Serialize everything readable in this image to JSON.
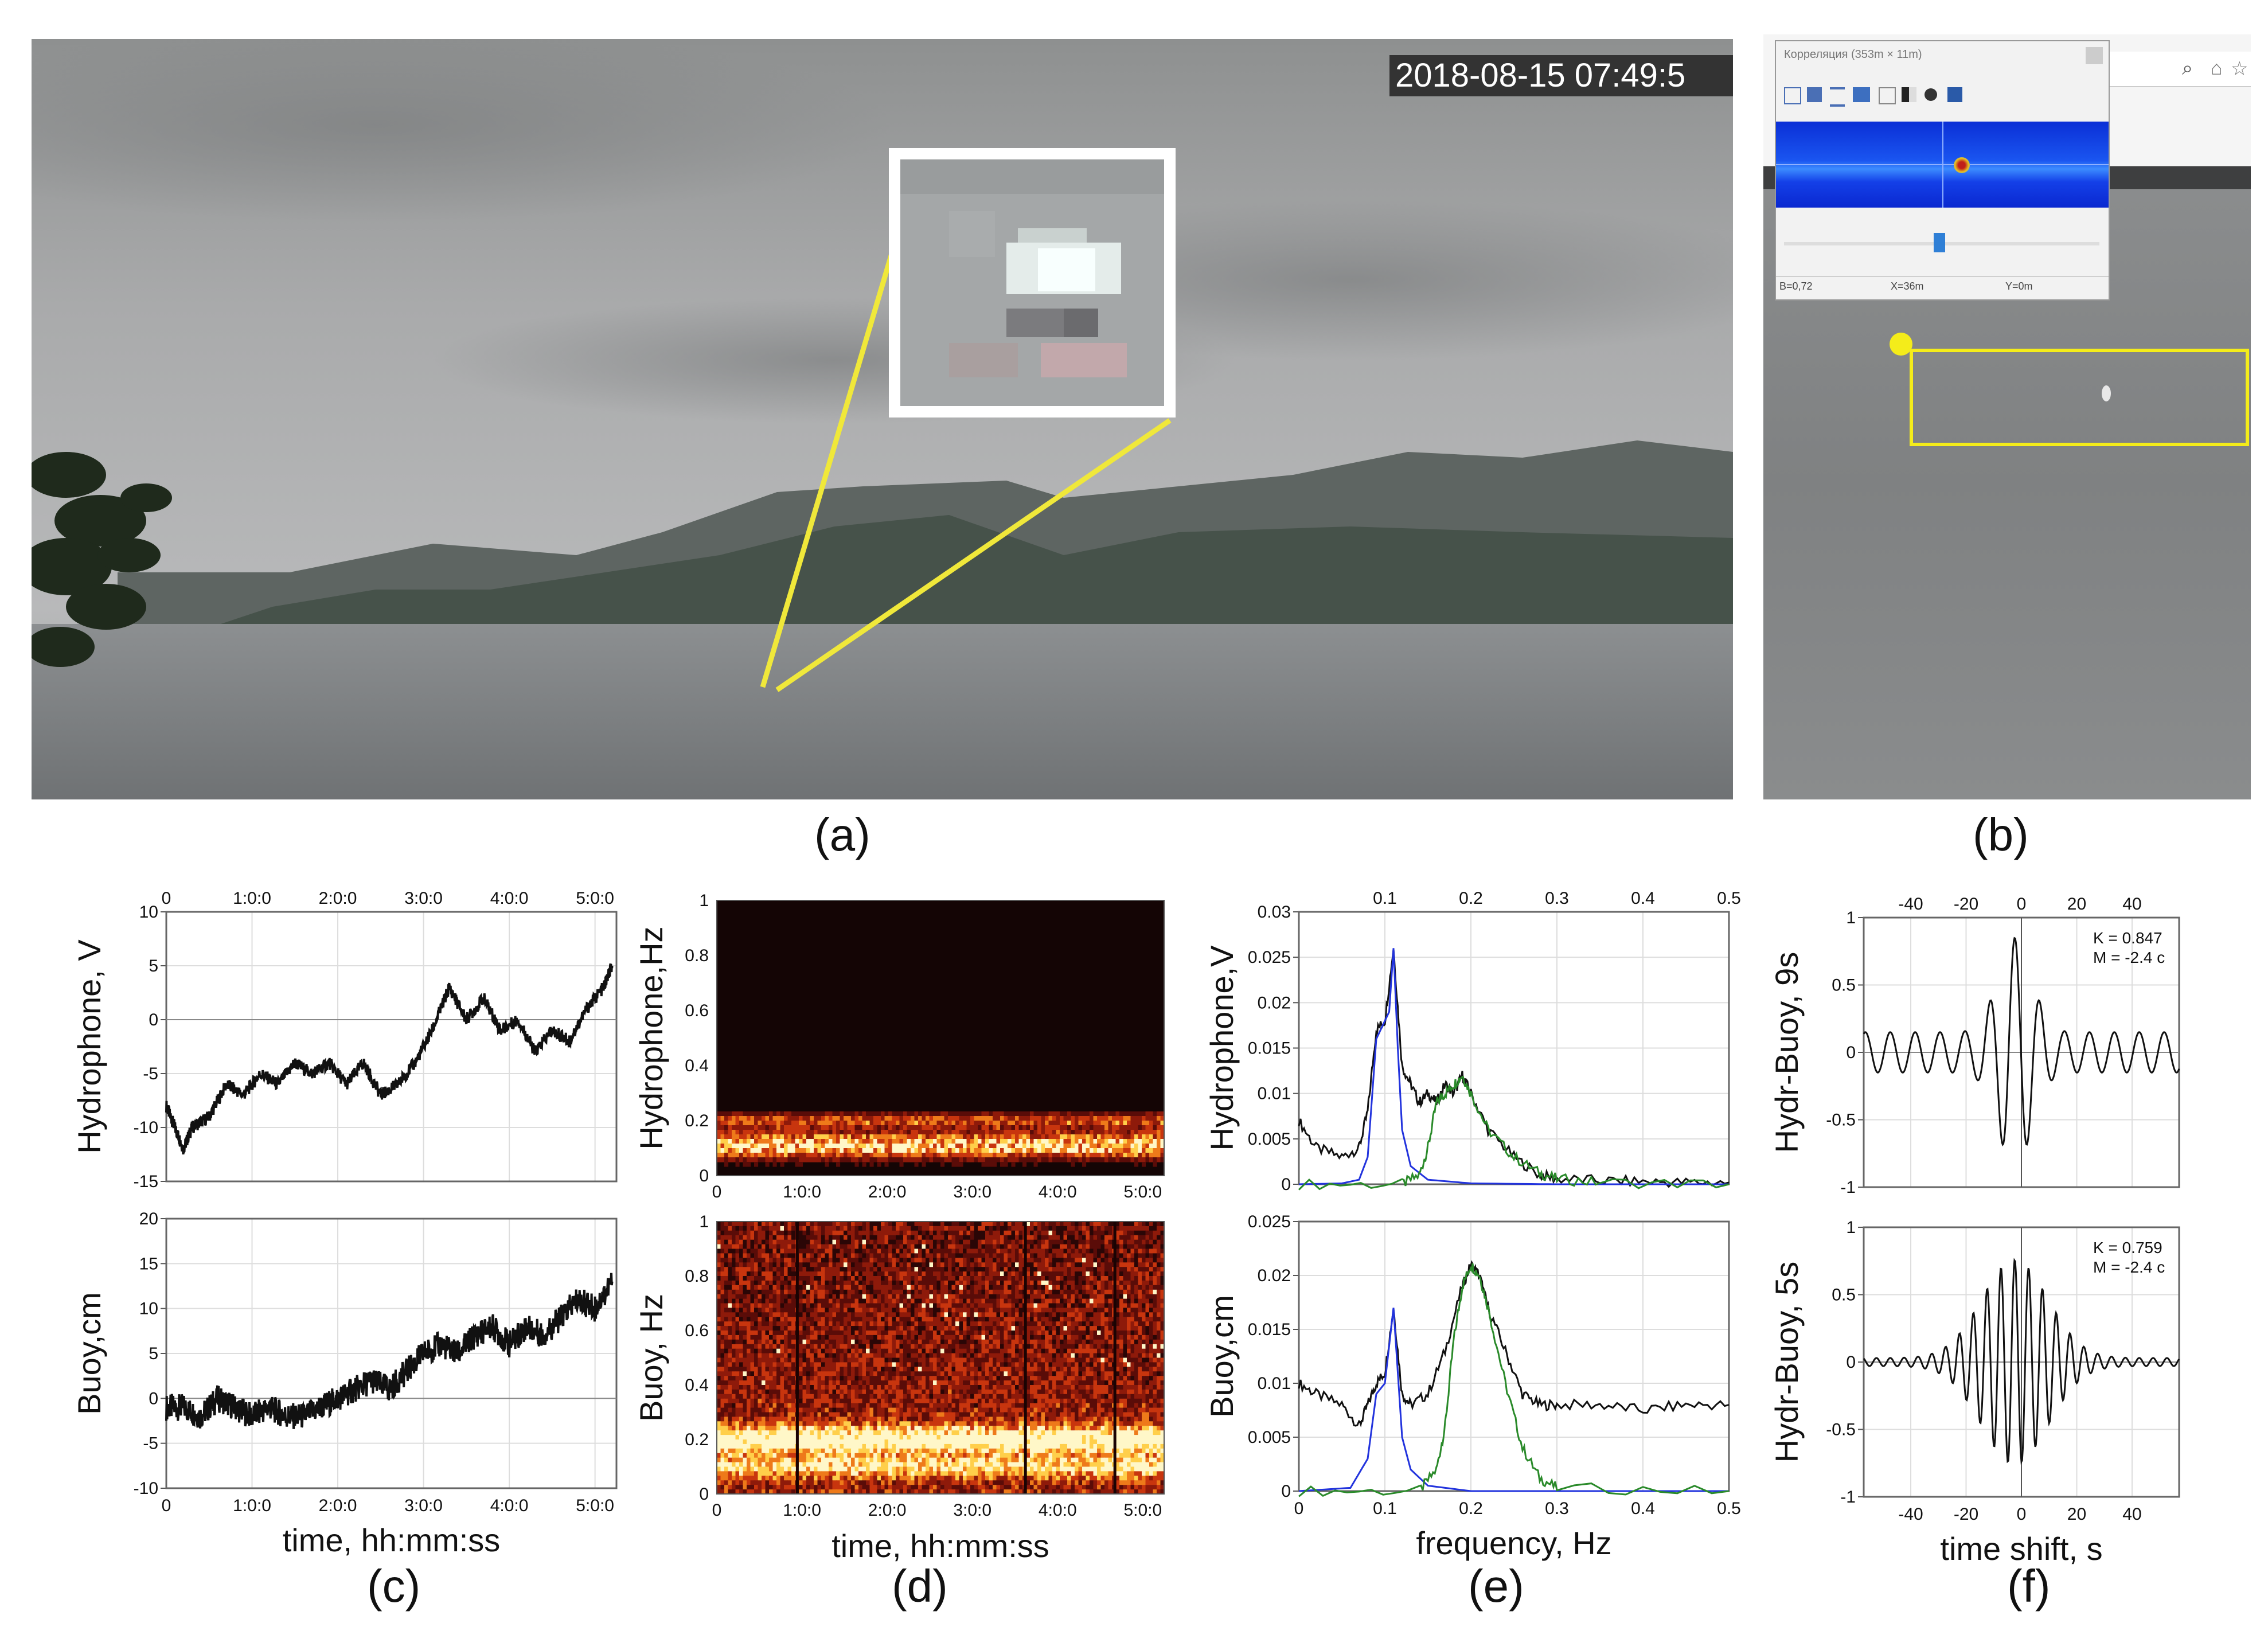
{
  "panel_a": {
    "label": "(a)",
    "timestamp": "2018-08-15 07:49:5"
  },
  "panel_b": {
    "label": "(b)",
    "window_title": "Корреляция (353m × 11m)",
    "status": [
      "B=0,72",
      "X=36m",
      "Y=0m"
    ]
  },
  "panel_c": {
    "label": "(c)"
  },
  "panel_d": {
    "label": "(d)"
  },
  "panel_e": {
    "label": "(e)"
  },
  "panel_f": {
    "label": "(f)"
  },
  "chart_data": [
    {
      "id": "c-top",
      "type": "line",
      "ylabel": "Hydrophone, V",
      "ylim": [
        -15,
        10
      ],
      "yticks": [
        10,
        5,
        0,
        -5,
        -10,
        -15
      ],
      "xlim": [
        0,
        5.25
      ],
      "xticks": [
        "0",
        "1:0:0",
        "2:0:0",
        "3:0:0",
        "4:0:0",
        "5:0:0"
      ],
      "xticks_at": [
        0,
        1,
        2,
        3,
        4,
        5
      ],
      "series": [
        {
          "x": [
            0,
            0.1,
            0.2,
            0.3,
            0.5,
            0.7,
            0.9,
            1.1,
            1.3,
            1.5,
            1.7,
            1.9,
            2.1,
            2.3,
            2.5,
            2.7,
            2.9,
            3.1,
            3.3,
            3.5,
            3.7,
            3.9,
            4.1,
            4.3,
            4.5,
            4.7,
            4.9,
            5.1,
            5.2
          ],
          "y": [
            -8,
            -10,
            -12,
            -10,
            -9,
            -6,
            -7,
            -5,
            -6,
            -4,
            -5,
            -4,
            -6,
            -4,
            -7,
            -6,
            -4,
            -1,
            3,
            0,
            2,
            -1,
            0,
            -3,
            -1,
            -2,
            1,
            3,
            5
          ]
        }
      ]
    },
    {
      "id": "c-bottom",
      "type": "line",
      "ylabel": "Buoy,cm",
      "xlabel": "time, hh:mm:ss",
      "ylim": [
        -10,
        20
      ],
      "yticks": [
        20,
        15,
        10,
        5,
        0,
        -5,
        -10
      ],
      "xlim": [
        0,
        5.25
      ],
      "xticks": [
        "0",
        "1:0:0",
        "2:0:0",
        "3:0:0",
        "4:0:0",
        "5:0:0"
      ],
      "xticks_at": [
        0,
        1,
        2,
        3,
        4,
        5
      ],
      "series": [
        {
          "x": [
            0,
            0.2,
            0.4,
            0.6,
            0.8,
            1.0,
            1.2,
            1.4,
            1.6,
            1.8,
            2.0,
            2.2,
            2.4,
            2.6,
            2.8,
            3.0,
            3.2,
            3.4,
            3.6,
            3.8,
            4.0,
            4.2,
            4.4,
            4.6,
            4.8,
            5.0,
            5.2
          ],
          "y": [
            -1,
            -1,
            -2,
            0,
            -1,
            -2,
            -1,
            -2,
            -2,
            -1,
            0,
            1,
            2,
            1,
            3,
            5,
            6,
            5,
            7,
            8,
            6,
            8,
            7,
            9,
            11,
            10,
            13
          ]
        }
      ]
    },
    {
      "id": "d-top",
      "type": "heatmap",
      "ylabel": "Hydrophone,Hz",
      "ylim": [
        0,
        1
      ],
      "yticks": [
        1,
        0.8,
        0.6,
        0.4,
        0.2,
        0
      ],
      "xticks": [
        "0",
        "1:0:0",
        "2:0:0",
        "3:0:0",
        "4:0:0",
        "5:0:0"
      ]
    },
    {
      "id": "d-bottom",
      "type": "heatmap",
      "ylabel": "Buoy, Hz",
      "xlabel": "time, hh:mm:ss",
      "ylim": [
        0,
        1
      ],
      "yticks": [
        1,
        0.8,
        0.6,
        0.4,
        0.2,
        0
      ],
      "xticks": [
        "0",
        "1:0:0",
        "2:0:0",
        "3:0:0",
        "4:0:0",
        "5:0:0"
      ]
    },
    {
      "id": "e-top",
      "type": "line",
      "ylabel": "Hydrophone,V",
      "ylim": [
        0,
        0.03
      ],
      "yticks": [
        0.03,
        0.025,
        0.02,
        0.015,
        0.01,
        0.005,
        0
      ],
      "xlim": [
        0,
        0.5
      ],
      "xticks": [
        "0.1",
        "0.2",
        "0.3",
        "0.4",
        "0.5"
      ],
      "xticks_at": [
        0.1,
        0.2,
        0.3,
        0.4,
        0.5
      ],
      "series": [
        {
          "color": "#111111",
          "x": [
            0.0,
            0.02,
            0.05,
            0.07,
            0.08,
            0.09,
            0.1,
            0.11,
            0.12,
            0.13,
            0.14,
            0.15,
            0.16,
            0.17,
            0.18,
            0.19,
            0.2,
            0.22,
            0.25,
            0.28,
            0.3,
            0.35,
            0.4,
            0.45,
            0.5
          ],
          "y": [
            0.007,
            0.004,
            0.003,
            0.004,
            0.008,
            0.017,
            0.018,
            0.026,
            0.013,
            0.011,
            0.009,
            0.01,
            0.009,
            0.011,
            0.01,
            0.012,
            0.01,
            0.006,
            0.003,
            0.001,
            0.0006,
            0.0004,
            0.0003,
            0.0002,
            0.0002
          ]
        },
        {
          "color": "#2233dd",
          "x": [
            0.0,
            0.05,
            0.07,
            0.08,
            0.09,
            0.1,
            0.105,
            0.11,
            0.115,
            0.12,
            0.13,
            0.15,
            0.2,
            0.3,
            0.5
          ],
          "y": [
            0.0,
            0.0001,
            0.0005,
            0.003,
            0.016,
            0.018,
            0.019,
            0.026,
            0.015,
            0.006,
            0.002,
            0.0005,
            0.0001,
            0.0,
            0.0
          ]
        },
        {
          "color": "#2a8a2a",
          "x": [
            0.0,
            0.12,
            0.14,
            0.15,
            0.16,
            0.17,
            0.18,
            0.19,
            0.2,
            0.22,
            0.25,
            0.28,
            0.3,
            0.35,
            0.5
          ],
          "y": [
            0.0,
            0.0,
            0.001,
            0.004,
            0.009,
            0.01,
            0.011,
            0.012,
            0.01,
            0.006,
            0.003,
            0.0012,
            0.0006,
            0.0002,
            0.0
          ]
        }
      ]
    },
    {
      "id": "e-bottom",
      "type": "line",
      "ylabel": "Buoy,cm",
      "xlabel": "frequency, Hz",
      "ylim": [
        0,
        0.025
      ],
      "yticks": [
        0.025,
        0.02,
        0.015,
        0.01,
        0.005,
        0
      ],
      "xlim": [
        0,
        0.5
      ],
      "xticks": [
        "0",
        "0.1",
        "0.2",
        "0.3",
        "0.4",
        "0.5"
      ],
      "xticks_at": [
        0,
        0.1,
        0.2,
        0.3,
        0.4,
        0.5
      ],
      "series": [
        {
          "color": "#111111",
          "x": [
            0.0,
            0.02,
            0.05,
            0.07,
            0.08,
            0.09,
            0.1,
            0.11,
            0.12,
            0.13,
            0.15,
            0.17,
            0.19,
            0.2,
            0.21,
            0.22,
            0.24,
            0.26,
            0.28,
            0.3,
            0.35,
            0.4,
            0.45,
            0.5
          ],
          "y": [
            0.01,
            0.009,
            0.008,
            0.006,
            0.008,
            0.01,
            0.011,
            0.017,
            0.009,
            0.008,
            0.009,
            0.013,
            0.019,
            0.021,
            0.02,
            0.017,
            0.013,
            0.009,
            0.008,
            0.008,
            0.008,
            0.0075,
            0.008,
            0.008
          ]
        },
        {
          "color": "#2233dd",
          "x": [
            0.0,
            0.06,
            0.08,
            0.09,
            0.1,
            0.11,
            0.115,
            0.12,
            0.13,
            0.15,
            0.2,
            0.5
          ],
          "y": [
            0.0,
            0.0003,
            0.003,
            0.009,
            0.01,
            0.017,
            0.011,
            0.005,
            0.002,
            0.0005,
            0.0,
            0.0
          ]
        },
        {
          "color": "#2a8a2a",
          "x": [
            0.0,
            0.14,
            0.16,
            0.17,
            0.18,
            0.19,
            0.2,
            0.21,
            0.22,
            0.24,
            0.26,
            0.28,
            0.3,
            0.5
          ],
          "y": [
            0.0,
            0.0,
            0.002,
            0.006,
            0.014,
            0.019,
            0.021,
            0.02,
            0.017,
            0.01,
            0.004,
            0.0012,
            0.0003,
            0.0
          ]
        }
      ]
    },
    {
      "id": "f-top",
      "type": "line",
      "ylabel": "Hydr-Buoy, 9s",
      "annotation": [
        "K = 0.847",
        "M = -2.4 c"
      ],
      "ylim": [
        -1,
        1
      ],
      "yticks": [
        1,
        0.5,
        0,
        -0.5,
        -1
      ],
      "xlim": [
        -57,
        57
      ],
      "xticks": [
        "-40",
        "-20",
        "0",
        "20",
        "40"
      ],
      "xticks_at": [
        -40,
        -20,
        0,
        20,
        40
      ],
      "series": [
        {
          "period": 9,
          "amplitude": 0.85,
          "envelope_width": 6,
          "baseline_amplitude": 0.15,
          "shift": -2.4
        }
      ]
    },
    {
      "id": "f-bottom",
      "type": "line",
      "ylabel": "Hydr-Buoy, 5s",
      "xlabel": "time shift, s",
      "annotation": [
        "K = 0.759",
        "M = -2.4 c"
      ],
      "ylim": [
        -1,
        1
      ],
      "yticks": [
        1,
        0.5,
        0,
        -0.5,
        -1
      ],
      "xlim": [
        -57,
        57
      ],
      "xticks": [
        "-40",
        "-20",
        "0",
        "20",
        "40"
      ],
      "xticks_at": [
        -40,
        -20,
        0,
        20,
        40
      ],
      "series": [
        {
          "period": 5,
          "amplitude": 0.76,
          "envelope_width": 12,
          "baseline_amplitude": 0.03,
          "shift": -2.4
        }
      ]
    }
  ]
}
